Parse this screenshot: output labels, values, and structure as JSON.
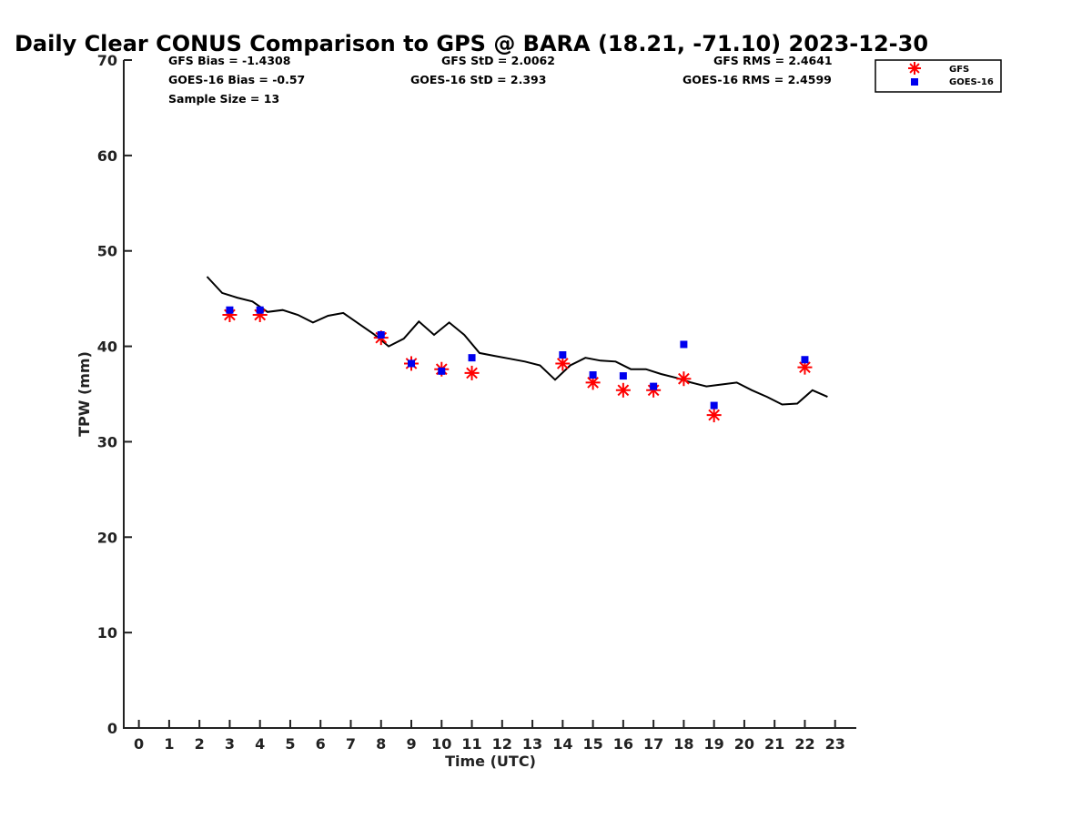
{
  "chart_data": {
    "type": "scatter",
    "title": "Daily Clear CONUS Comparison to GPS @ BARA (18.21, -71.10) 2023-12-30",
    "xlabel": "Time (UTC)",
    "ylabel": "TPW (mm)",
    "xlim": [
      -0.5,
      23.7
    ],
    "ylim": [
      0,
      70
    ],
    "x_ticks": [
      0,
      1,
      2,
      3,
      4,
      5,
      6,
      7,
      8,
      9,
      10,
      11,
      12,
      13,
      14,
      15,
      16,
      17,
      18,
      19,
      20,
      21,
      22,
      23
    ],
    "y_ticks": [
      0,
      10,
      20,
      30,
      40,
      50,
      60,
      70
    ],
    "stats": {
      "gfs_bias": "GFS Bias = -1.4308",
      "goes_bias": "GOES-16 Bias = -0.57",
      "sample_size": "Sample Size = 13",
      "gfs_std": "GFS StD = 2.0062",
      "goes_std": "GOES-16 StD = 2.393",
      "gfs_rms": "GFS RMS = 2.4641",
      "goes_rms": "GOES-16 RMS = 2.4599"
    },
    "legend": {
      "placement": "top-right",
      "entries": [
        "GFS",
        "GOES-16"
      ]
    },
    "series": [
      {
        "name": "GPS",
        "type": "line",
        "color": "#000000",
        "x": [
          2.25,
          2.75,
          3.25,
          3.75,
          4.25,
          4.75,
          5.25,
          5.75,
          6.25,
          6.75,
          7.25,
          7.75,
          8.25,
          8.75,
          9.25,
          9.75,
          10.25,
          10.75,
          11.25,
          11.75,
          12.25,
          12.75,
          13.25,
          13.75,
          14.25,
          14.75,
          15.25,
          15.75,
          16.25,
          16.75,
          17.25,
          17.75,
          18.25,
          18.75,
          19.25,
          19.75,
          20.25,
          20.75,
          21.25,
          21.75,
          22.25,
          22.75
        ],
        "y": [
          47.3,
          45.6,
          45.1,
          44.7,
          43.6,
          43.8,
          43.3,
          42.5,
          43.2,
          43.5,
          42.4,
          41.3,
          40.0,
          40.8,
          42.6,
          41.2,
          42.5,
          41.2,
          39.3,
          39.0,
          38.7,
          38.4,
          38.0,
          36.5,
          38.0,
          38.8,
          38.5,
          38.4,
          37.6,
          37.6,
          37.1,
          36.7,
          36.2,
          35.8,
          36.0,
          36.2,
          35.4,
          34.7,
          33.9,
          34.0,
          35.4,
          34.7
        ]
      },
      {
        "name": "GFS",
        "type": "scatter",
        "marker": "asterisk",
        "color": "#ff0000",
        "x": [
          3,
          4,
          8,
          9,
          10,
          11,
          14,
          15,
          16,
          17,
          18,
          19,
          22
        ],
        "y": [
          43.3,
          43.3,
          40.9,
          38.2,
          37.6,
          37.2,
          38.2,
          36.2,
          35.4,
          35.4,
          36.6,
          32.8,
          37.8
        ]
      },
      {
        "name": "GOES-16",
        "type": "scatter",
        "marker": "square",
        "color": "#0000ee",
        "x": [
          3,
          4,
          8,
          9,
          10,
          11,
          14,
          15,
          16,
          17,
          18,
          19,
          22
        ],
        "y": [
          43.8,
          43.8,
          41.2,
          38.2,
          37.4,
          38.8,
          39.1,
          37.0,
          36.9,
          35.8,
          40.2,
          33.8,
          38.6
        ]
      }
    ]
  }
}
